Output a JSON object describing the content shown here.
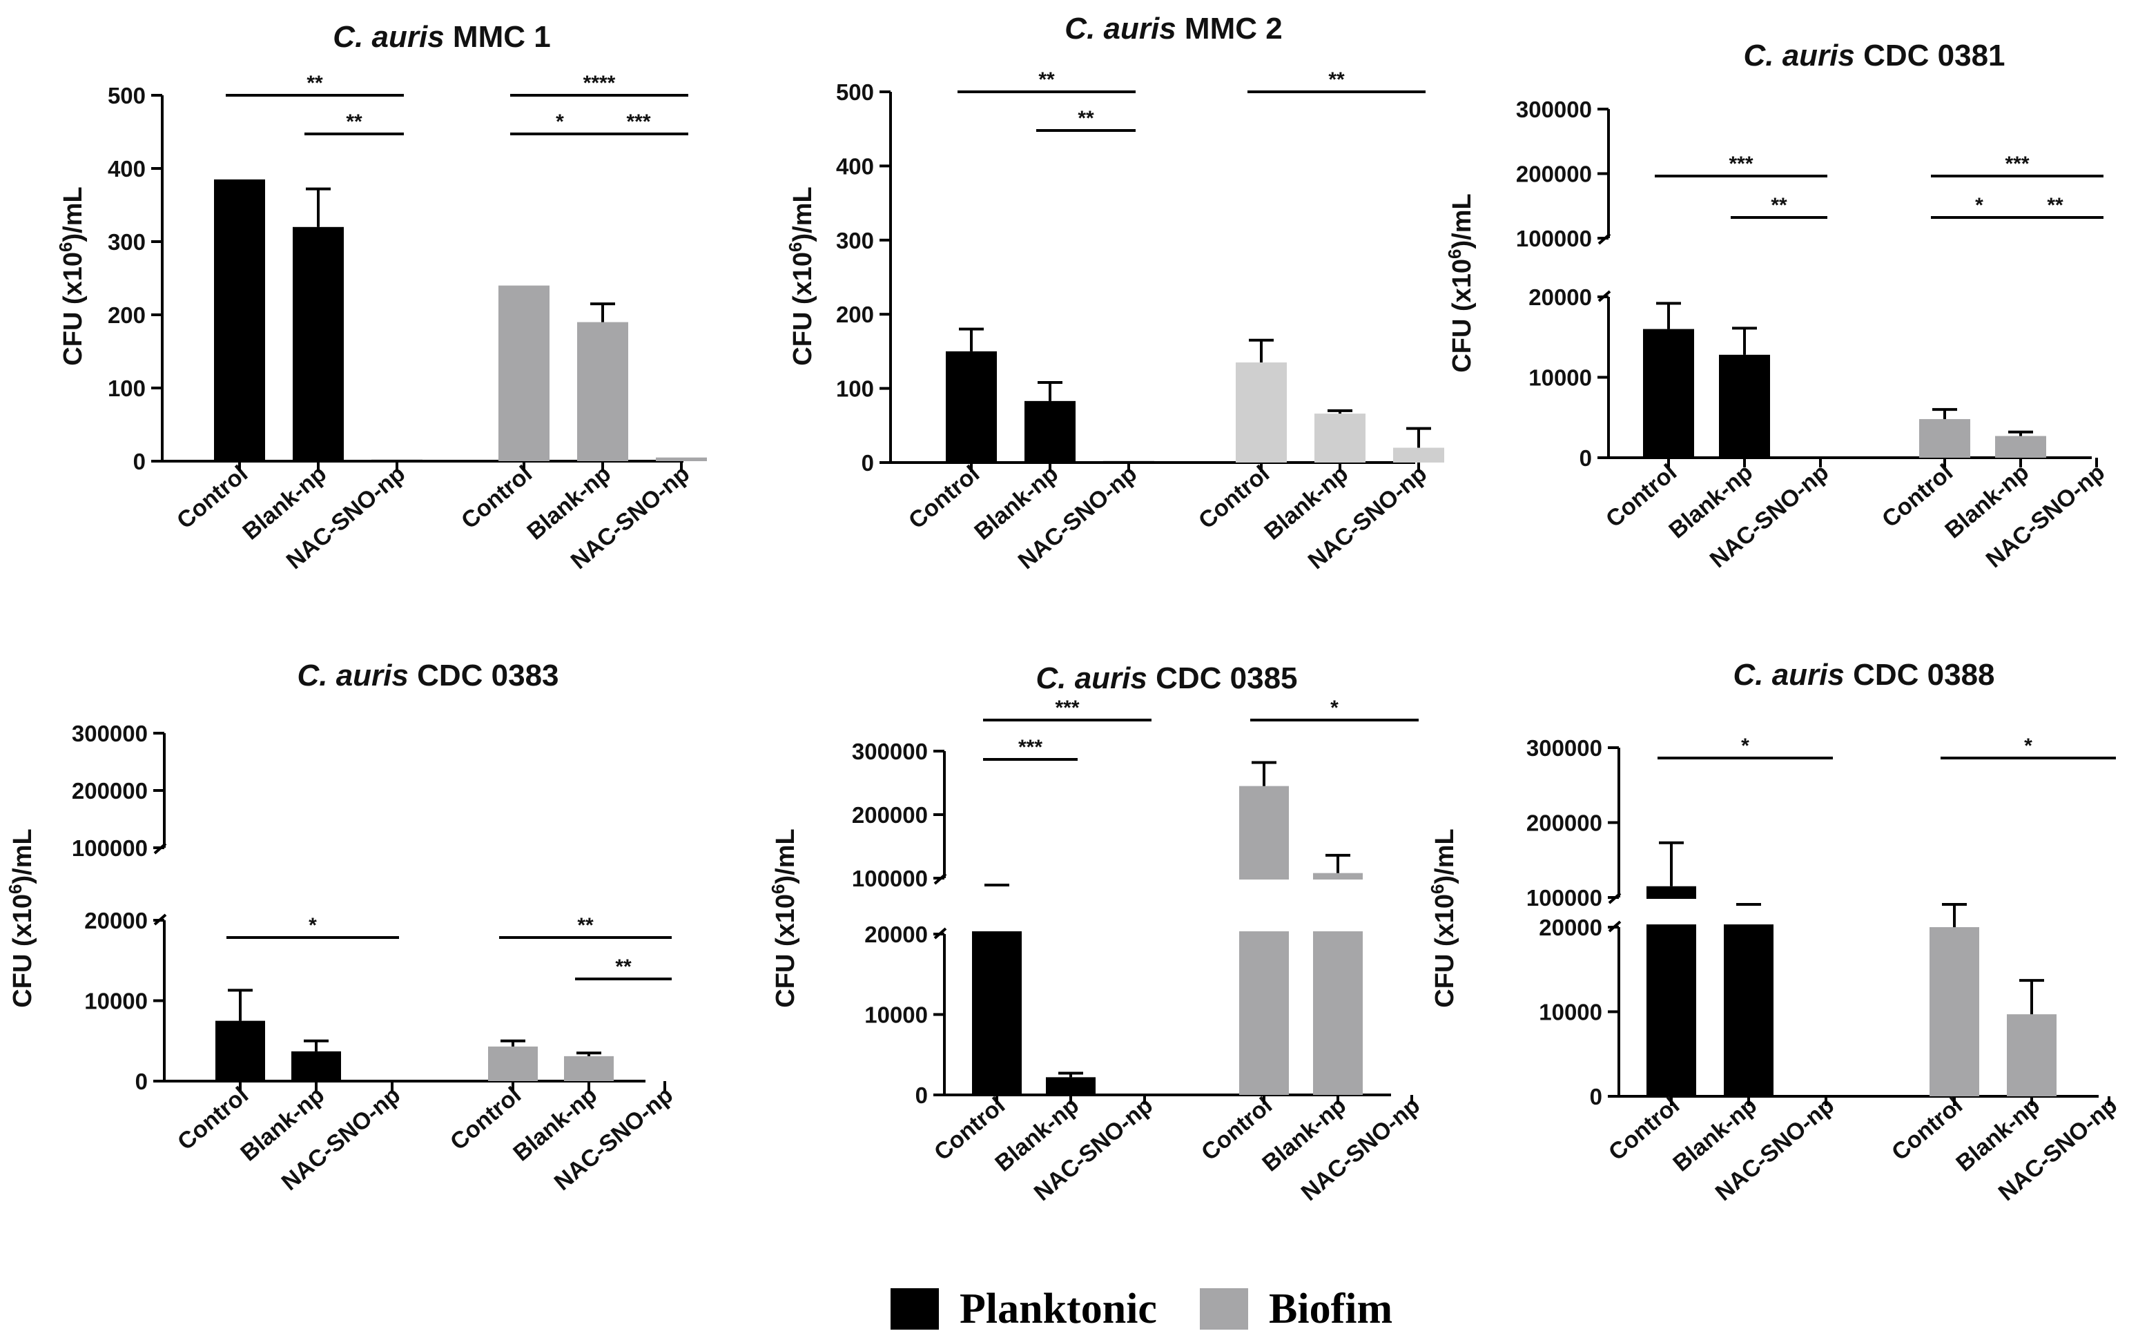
{
  "chart_data": [
    {
      "type": "bar",
      "title": "MMC 1",
      "title_species": "C. auris",
      "ylabel": "CFU (x10^6)/mL",
      "ylabel_parts": {
        "main": "CFU (x10",
        "sup": "6",
        "end": ")/mL"
      },
      "categories": [
        "Control",
        "Blank-np",
        "NAC-SNO-np"
      ],
      "axis_break": false,
      "ylim": [
        0,
        500
      ],
      "yticks": [
        0,
        100,
        200,
        300,
        400,
        500
      ],
      "series": [
        {
          "name": "Planktonic",
          "values": [
            385,
            320,
            2
          ],
          "errors": [
            0,
            52,
            0
          ]
        },
        {
          "name": "Biofim",
          "values": [
            240,
            190,
            5
          ],
          "errors": [
            0,
            25,
            0
          ]
        }
      ],
      "significance": [
        {
          "group": 0,
          "from": 0,
          "to": 2,
          "label": "**",
          "level": 1
        },
        {
          "group": 0,
          "from": 1,
          "to": 2,
          "label": "**",
          "level": 0
        },
        {
          "group": 1,
          "from": 0,
          "to": 2,
          "label": "****",
          "level": 1
        },
        {
          "group": 1,
          "from": 0,
          "to": 1,
          "label": "*",
          "level": 0
        },
        {
          "group": 1,
          "from": 1,
          "to": 2,
          "label": "***",
          "level": 0
        }
      ]
    },
    {
      "type": "bar",
      "title": "MMC 2",
      "title_species": "C. auris",
      "ylabel": "CFU (x10^6)/mL",
      "ylabel_parts": {
        "main": "CFU (x10",
        "sup": "6",
        "end": ")/mL"
      },
      "categories": [
        "Control",
        "Blank-np",
        "NAC-SNO-np"
      ],
      "axis_break": false,
      "ylim": [
        0,
        500
      ],
      "yticks": [
        0,
        100,
        200,
        300,
        400,
        500
      ],
      "series": [
        {
          "name": "Planktonic",
          "values": [
            150,
            83,
            2
          ],
          "errors": [
            30,
            25,
            0
          ]
        },
        {
          "name": "Biofim",
          "values": [
            135,
            66,
            20
          ],
          "errors": [
            30,
            4,
            26
          ]
        }
      ],
      "significance": [
        {
          "group": 0,
          "from": 0,
          "to": 2,
          "label": "**",
          "level": 1
        },
        {
          "group": 0,
          "from": 1,
          "to": 2,
          "label": "**",
          "level": 0
        },
        {
          "group": 1,
          "from": 0,
          "to": 2,
          "label": "**",
          "level": 1
        }
      ]
    },
    {
      "type": "bar",
      "title": "CDC 0381",
      "title_species": "C. auris",
      "ylabel": "CFU (x10^6)/mL",
      "ylabel_parts": {
        "main": "CFU (x10",
        "sup": "6",
        "end": ")/mL"
      },
      "categories": [
        "Control",
        "Blank-np",
        "NAC-SNO-np"
      ],
      "axis_break": true,
      "lower_range": [
        0,
        20000
      ],
      "upper_range": [
        100000,
        300000
      ],
      "lower_ticks": [
        0,
        10000,
        20000
      ],
      "upper_ticks": [
        100000,
        200000,
        300000
      ],
      "series": [
        {
          "name": "Planktonic",
          "values": [
            16000,
            12800,
            0
          ],
          "errors": [
            3200,
            3300,
            0
          ]
        },
        {
          "name": "Biofim",
          "values": [
            4800,
            2700,
            0
          ],
          "errors": [
            1200,
            500,
            0
          ]
        }
      ],
      "significance": [
        {
          "group": 0,
          "from": 0,
          "to": 2,
          "label": "***",
          "level": 1
        },
        {
          "group": 0,
          "from": 1,
          "to": 2,
          "label": "**",
          "level": 0
        },
        {
          "group": 1,
          "from": 0,
          "to": 2,
          "label": "***",
          "level": 1
        },
        {
          "group": 1,
          "from": 0,
          "to": 1,
          "label": "*",
          "level": 0
        },
        {
          "group": 1,
          "from": 1,
          "to": 2,
          "label": "**",
          "level": 0
        }
      ]
    },
    {
      "type": "bar",
      "title": "CDC 0383",
      "title_species": "C. auris",
      "ylabel": "CFU (x10^6)/mL",
      "ylabel_parts": {
        "main": "CFU (x10",
        "sup": "6",
        "end": ")/mL"
      },
      "categories": [
        "Control",
        "Blank-np",
        "NAC-SNO-np"
      ],
      "axis_break": true,
      "lower_range": [
        0,
        20000
      ],
      "upper_range": [
        100000,
        300000
      ],
      "lower_ticks": [
        0,
        10000,
        20000
      ],
      "upper_ticks": [
        100000,
        200000,
        300000
      ],
      "series": [
        {
          "name": "Planktonic",
          "values": [
            7500,
            3700,
            0
          ],
          "errors": [
            3800,
            1300,
            0
          ]
        },
        {
          "name": "Biofim",
          "values": [
            4300,
            3100,
            0
          ],
          "errors": [
            700,
            400,
            0
          ]
        }
      ],
      "significance": [
        {
          "group": 0,
          "from": 0,
          "to": 2,
          "label": "*",
          "level": 1
        },
        {
          "group": 1,
          "from": 0,
          "to": 2,
          "label": "**",
          "level": 1
        },
        {
          "group": 1,
          "from": 1,
          "to": 2,
          "label": "**",
          "level": 0
        }
      ]
    },
    {
      "type": "bar",
      "title": "CDC 0385",
      "title_species": "C. auris",
      "ylabel": "CFU (x10^6)/mL",
      "ylabel_parts": {
        "main": "CFU (x10",
        "sup": "6",
        "end": ")/mL"
      },
      "categories": [
        "Control",
        "Blank-np",
        "NAC-SNO-np"
      ],
      "axis_break": true,
      "lower_range": [
        0,
        20000
      ],
      "upper_range": [
        100000,
        300000
      ],
      "lower_ticks": [
        0,
        10000,
        20000
      ],
      "upper_ticks": [
        100000,
        200000,
        300000
      ],
      "series": [
        {
          "name": "Planktonic",
          "values": [
            75000,
            2200,
            0
          ],
          "errors": [
            8000,
            500,
            0
          ]
        },
        {
          "name": "Biofim",
          "values": [
            245000,
            108000,
            0
          ],
          "errors": [
            37000,
            28000,
            0
          ]
        }
      ],
      "significance": [
        {
          "group": 0,
          "from": 0,
          "to": 2,
          "label": "***",
          "level": 1
        },
        {
          "group": 0,
          "from": 0,
          "to": 1,
          "label": "***",
          "level": 0
        },
        {
          "group": 1,
          "from": 0,
          "to": 2,
          "label": "*",
          "level": 1
        }
      ]
    },
    {
      "type": "bar",
      "title": "CDC 0388",
      "title_species": "C. auris",
      "ylabel": "CFU (x10^6)/mL",
      "ylabel_parts": {
        "main": "CFU (x10",
        "sup": "6",
        "end": ")/mL"
      },
      "categories": [
        "Control",
        "Blank-np",
        "NAC-SNO-np"
      ],
      "axis_break": true,
      "lower_range": [
        0,
        20000
      ],
      "upper_range": [
        100000,
        300000
      ],
      "lower_ticks": [
        0,
        10000,
        20000
      ],
      "upper_ticks": [
        100000,
        200000,
        300000
      ],
      "series": [
        {
          "name": "Planktonic",
          "values": [
            115000,
            45000,
            0
          ],
          "errors": [
            58000,
            15000,
            0
          ]
        },
        {
          "name": "Biofim",
          "values": [
            20000,
            9700,
            0
          ],
          "errors": [
            28000,
            4000,
            0
          ]
        }
      ],
      "significance": [
        {
          "group": 0,
          "from": 0,
          "to": 2,
          "label": "*",
          "level": 1
        },
        {
          "group": 1,
          "from": 0,
          "to": 2,
          "label": "*",
          "level": 1
        }
      ]
    }
  ],
  "legend": {
    "position": "bottom-center",
    "items": [
      {
        "label": "Planktonic",
        "color": "#000000"
      },
      {
        "label": "Biofim",
        "color": "#a6a6a8"
      }
    ]
  },
  "colors": {
    "planktonic": "#000000",
    "biofilm": "#a6a6a8",
    "biofilm_light": "#cfcfcf",
    "axis": "#000000"
  }
}
